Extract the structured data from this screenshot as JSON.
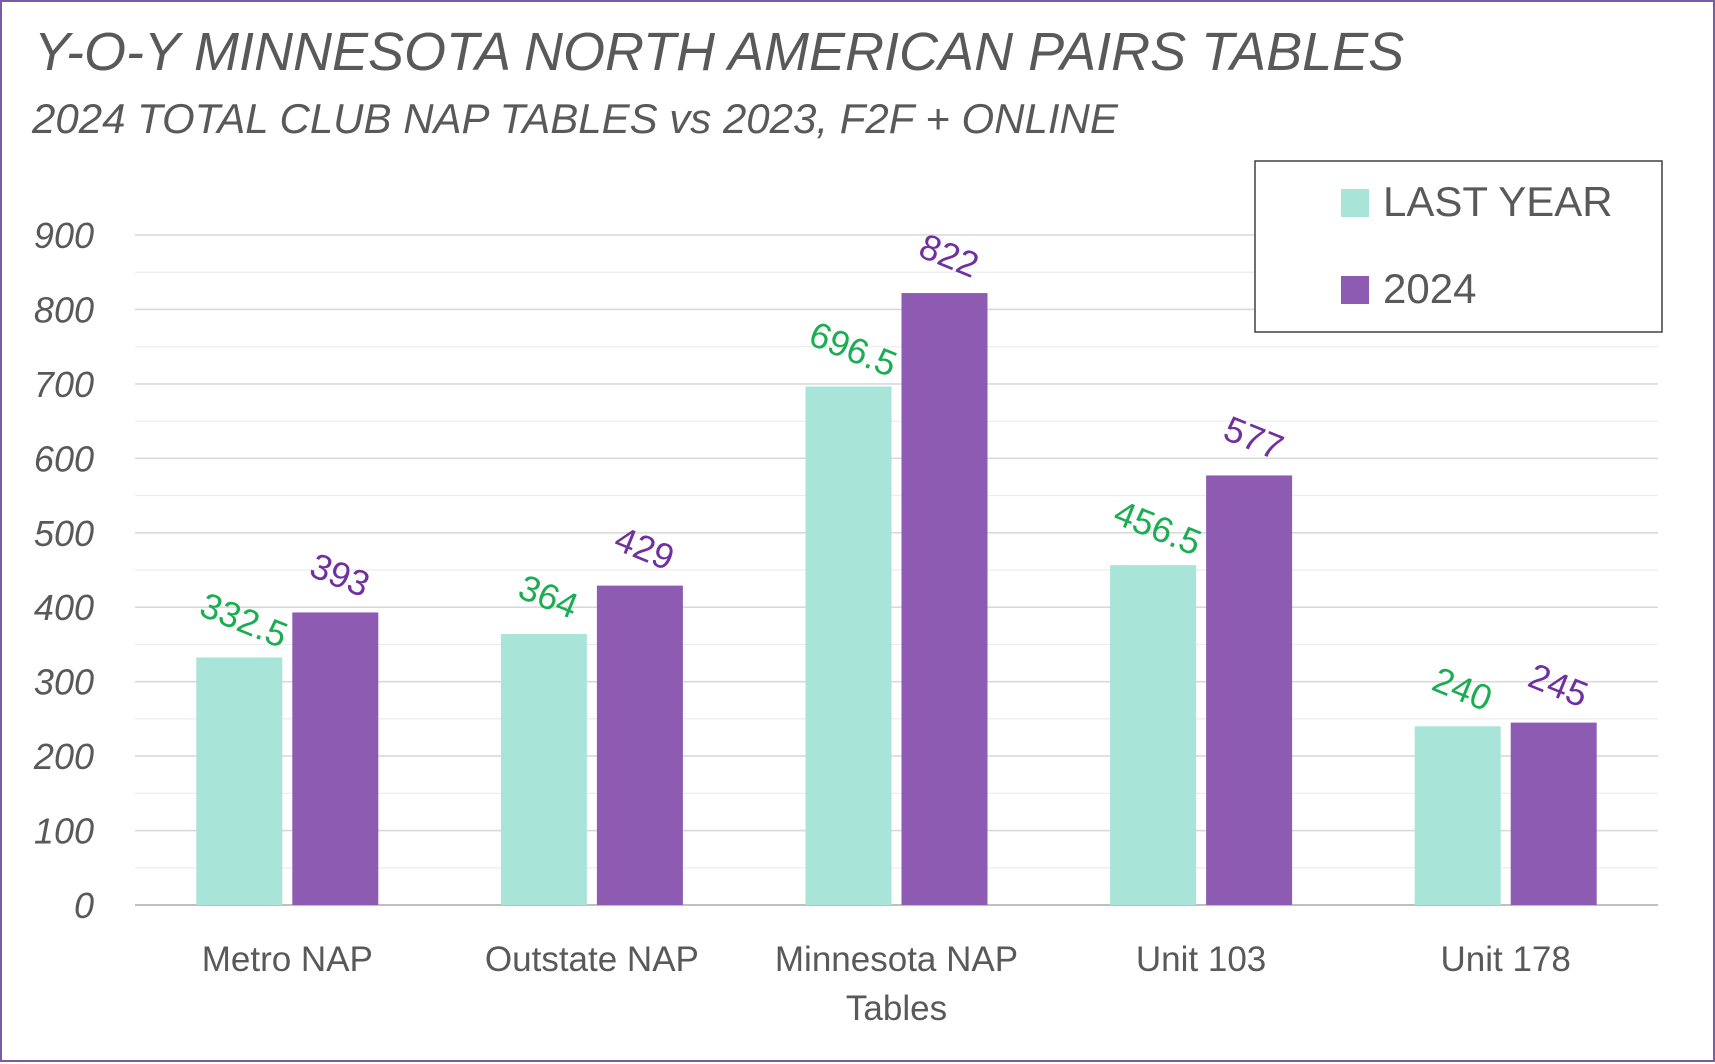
{
  "chart_data": {
    "type": "bar",
    "title": "Y-O-Y MINNESOTA NORTH AMERICAN PAIRS TABLES",
    "subtitle": "2024 TOTAL CLUB NAP TABLES vs 2023, F2F + ONLINE",
    "categories": [
      [
        "Metro NAP"
      ],
      [
        "Outstate NAP"
      ],
      [
        "Minnesota NAP",
        "Tables"
      ],
      [
        "Unit 103"
      ],
      [
        "Unit 178"
      ]
    ],
    "series": [
      {
        "name": "LAST YEAR",
        "values": [
          332.5,
          364,
          696.5,
          456.5,
          240
        ],
        "color": "#a8e4d8",
        "label_color": "#1aad52"
      },
      {
        "name": "2024",
        "values": [
          393,
          429,
          822,
          577,
          245
        ],
        "color": "#8e5bb3",
        "label_color": "#7030a0"
      }
    ],
    "ylim": [
      0,
      900
    ],
    "yticks": [
      0,
      100,
      200,
      300,
      400,
      500,
      600,
      700,
      800,
      900
    ],
    "grid": true,
    "legend_position": "top-right",
    "xlabel": "",
    "ylabel": ""
  }
}
